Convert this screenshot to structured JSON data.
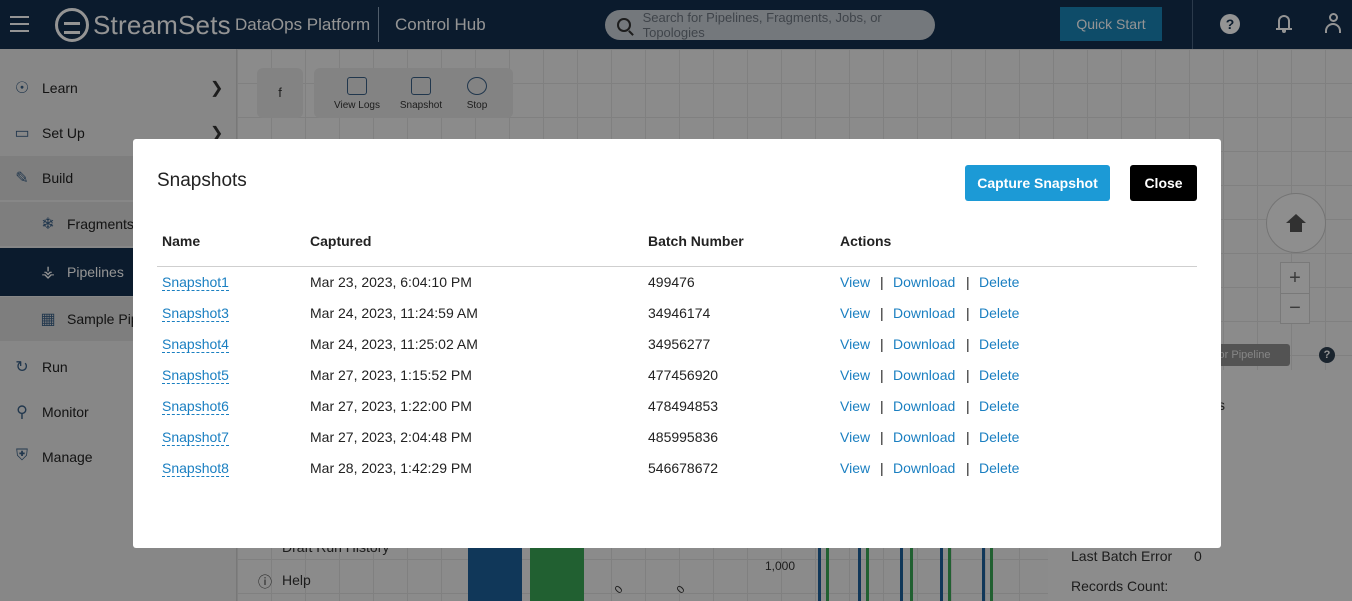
{
  "topbar": {
    "brand": "StreamSets",
    "product": "DataOps Platform",
    "hub": "Control Hub",
    "search_placeholder": "Search for Pipelines, Fragments, Jobs, or Topologies",
    "quick_start": "Quick Start"
  },
  "sidebar": {
    "items": [
      {
        "label": "Learn",
        "icon": "lightbulb-icon"
      },
      {
        "label": "Set Up",
        "icon": "monitor-icon"
      },
      {
        "label": "Build",
        "icon": "build-icon"
      },
      {
        "label": "Fragments",
        "icon": "fragment-icon"
      },
      {
        "label": "Pipelines",
        "icon": "pipeline-icon"
      },
      {
        "label": "Sample Pip",
        "icon": "sample-pipeline-icon"
      },
      {
        "label": "Run",
        "icon": "run-icon"
      },
      {
        "label": "Monitor",
        "icon": "monitor-search-icon"
      },
      {
        "label": "Manage",
        "icon": "shield-icon"
      }
    ]
  },
  "canvas": {
    "toolbar_f": "f",
    "tools": [
      "View Logs",
      "Snapshot",
      "Stop"
    ],
    "connector_badge": "ctor Pipeline",
    "draft_run_history": "Draft Run History",
    "help": "Help",
    "axis_tick": "1,000",
    "last_batch_error_label": "Last Batch Error",
    "last_batch_error_value": "0",
    "records_count_label": "Records Count:",
    "bar_label_a": "0",
    "bar_label_b": "0",
    "partial_s": "s"
  },
  "modal": {
    "title": "Snapshots",
    "capture_label": "Capture Snapshot",
    "close_label": "Close",
    "columns": {
      "name": "Name",
      "captured": "Captured",
      "batch": "Batch Number",
      "actions": "Actions"
    },
    "action_labels": {
      "view": "View",
      "download": "Download",
      "delete": "Delete",
      "separator": "|"
    },
    "rows": [
      {
        "name": "Snapshot1",
        "captured": "Mar 23, 2023, 6:04:10 PM",
        "batch": "499476"
      },
      {
        "name": "Snapshot3",
        "captured": "Mar 24, 2023, 11:24:59 AM",
        "batch": "34946174"
      },
      {
        "name": "Snapshot4",
        "captured": "Mar 24, 2023, 11:25:02 AM",
        "batch": "34956277"
      },
      {
        "name": "Snapshot5",
        "captured": "Mar 27, 2023, 1:15:52 PM",
        "batch": "477456920"
      },
      {
        "name": "Snapshot6",
        "captured": "Mar 27, 2023, 1:22:00 PM",
        "batch": "478494853"
      },
      {
        "name": "Snapshot7",
        "captured": "Mar 27, 2023, 2:04:48 PM",
        "batch": "485995836"
      },
      {
        "name": "Snapshot8",
        "captured": "Mar 28, 2023, 1:42:29 PM",
        "batch": "546678672"
      }
    ]
  },
  "colors": {
    "topbar": "#13304f",
    "accent": "#1c9ad6",
    "link": "#1a7fc1"
  }
}
